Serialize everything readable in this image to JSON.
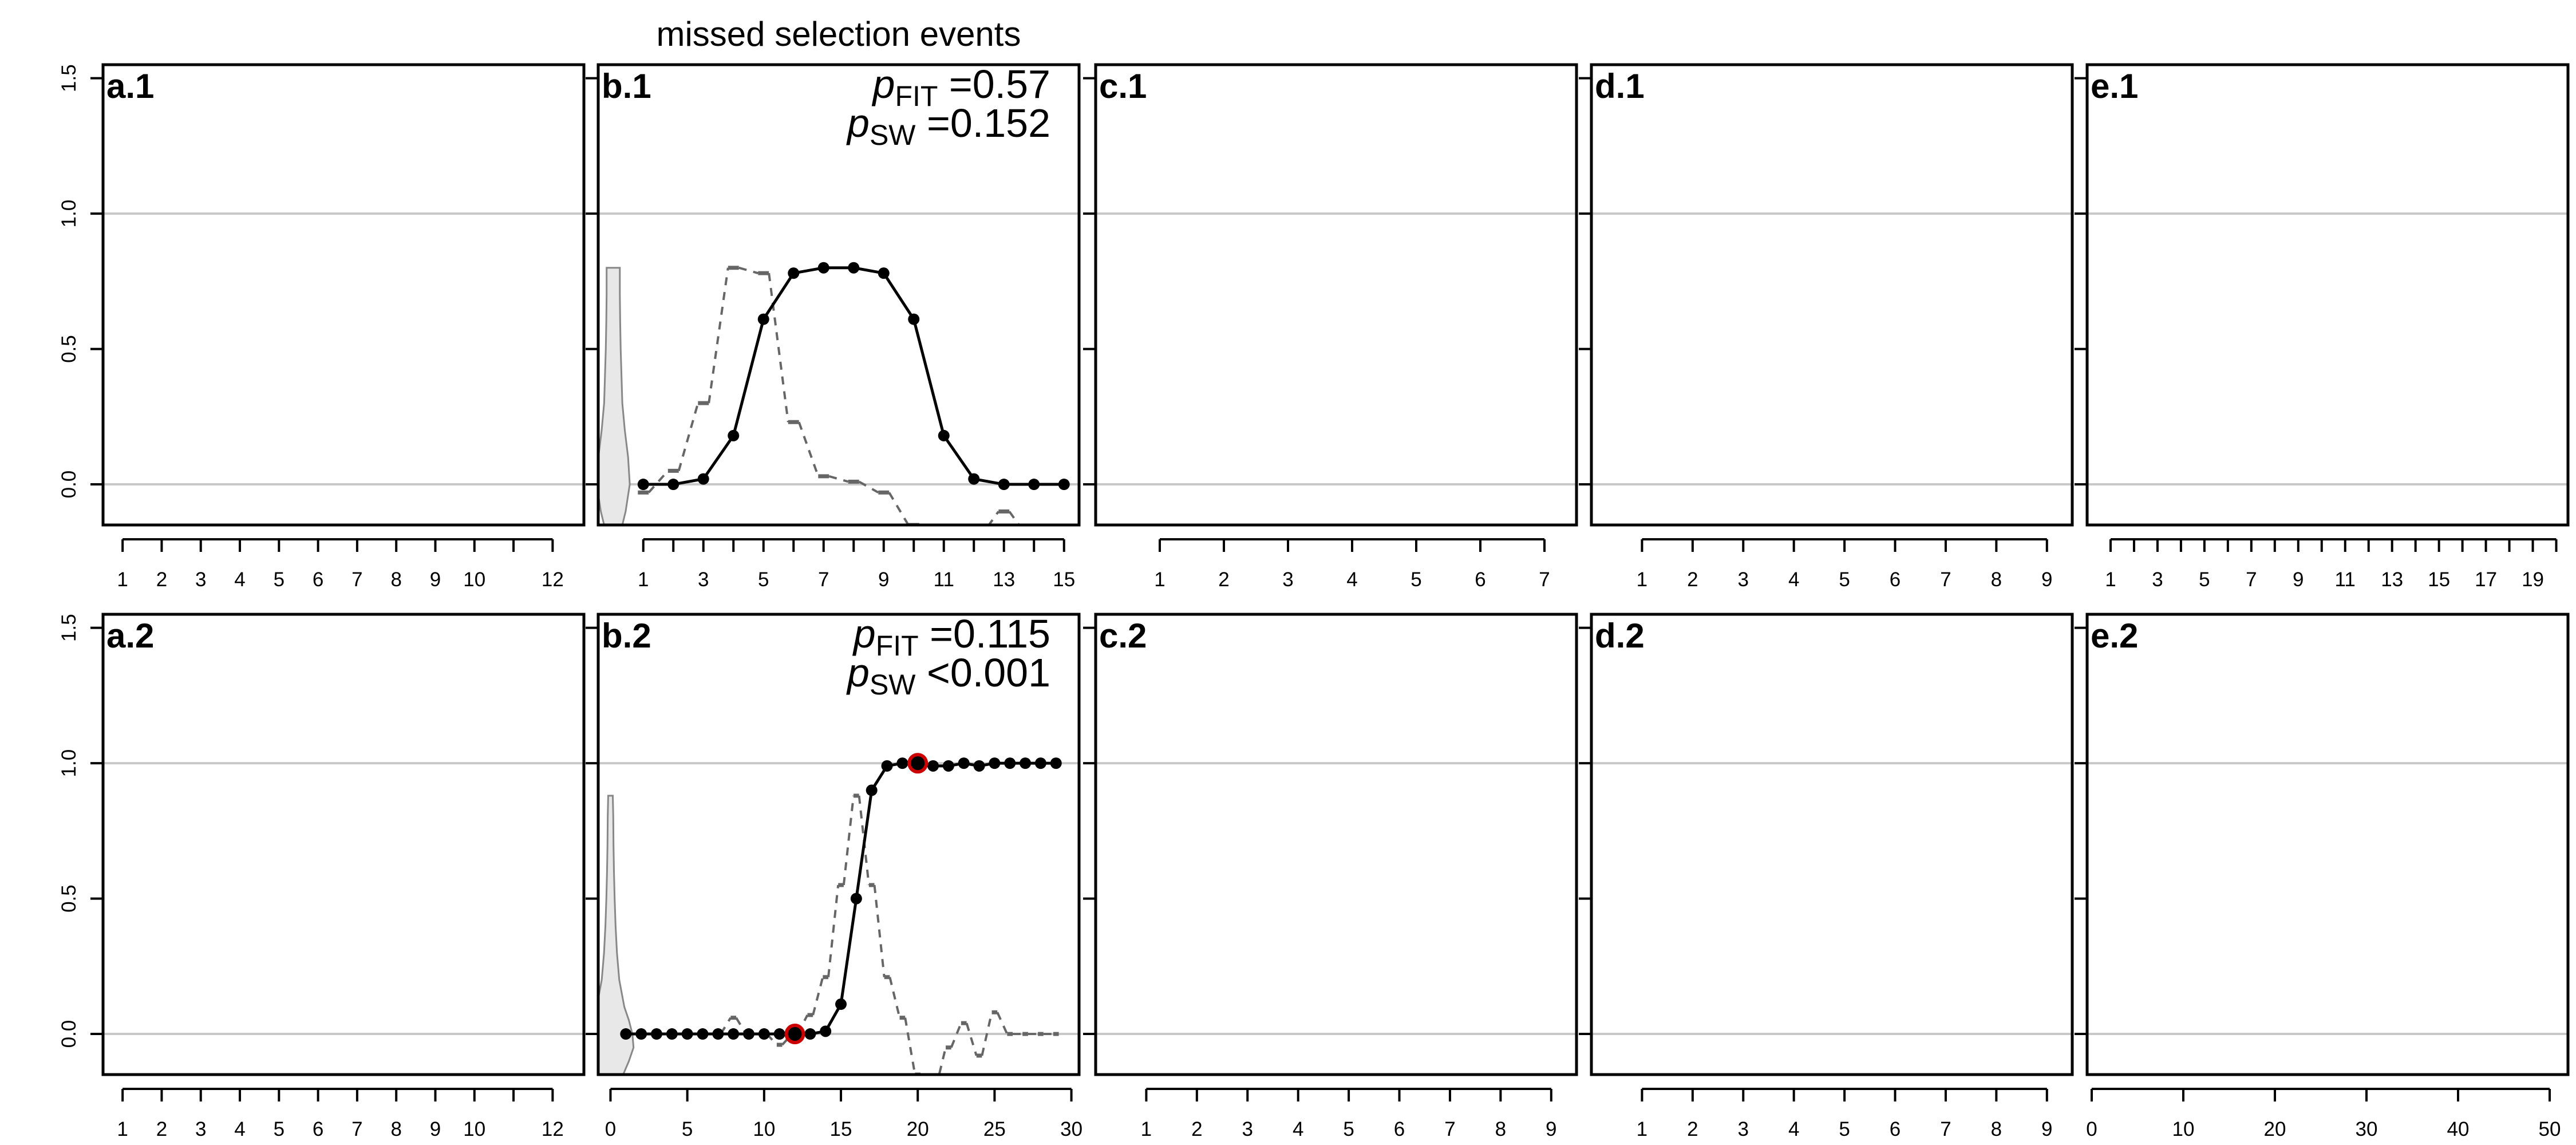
{
  "title": "missed selection events",
  "colors": {
    "frame": "#000000",
    "reference_line": "#c8c8c8",
    "observed": "#000000",
    "dashed": "#666666",
    "violin_fill": "#e8e8e8",
    "violin_stroke": "#888888",
    "highlight": "#cc0000"
  },
  "chart_data": [
    {
      "type": "line",
      "panel": "a.1",
      "row": 1,
      "col": 1,
      "xlim": [
        0.5,
        12.8
      ],
      "ylim": [
        -0.15,
        1.55
      ],
      "yticks": [
        0.0,
        0.5,
        1.0,
        1.5
      ],
      "ytick_labels": [
        "0.0",
        "0.5",
        "1.0",
        "1.5"
      ],
      "reference_lines": [
        0,
        1
      ],
      "xticks": [
        1,
        2,
        3,
        4,
        5,
        6,
        7,
        8,
        9,
        10,
        11,
        12
      ],
      "xtick_labels": [
        "1",
        "2",
        "3",
        "4",
        "5",
        "6",
        "7",
        "8",
        "9",
        "10",
        "",
        "12"
      ],
      "series": []
    },
    {
      "type": "line",
      "panel": "b.1",
      "row": 1,
      "col": 2,
      "xlim": [
        -0.5,
        15.5
      ],
      "ylim": [
        -0.15,
        1.55
      ],
      "yticks": [
        0.0,
        0.5,
        1.0,
        1.5
      ],
      "ytick_labels": [
        "0.0",
        "0.5",
        "1.0",
        "1.5"
      ],
      "reference_lines": [
        0,
        1
      ],
      "xticks": [
        1,
        2,
        3,
        4,
        5,
        6,
        7,
        8,
        9,
        10,
        11,
        12,
        13,
        14,
        15
      ],
      "xtick_labels": [
        "1",
        "",
        "3",
        "",
        "5",
        "",
        "7",
        "",
        "9",
        "",
        "11",
        "",
        "13",
        "",
        "15"
      ],
      "stats": [
        {
          "sym": "p",
          "sub": "FIT",
          "op": "=",
          "value": "0.57"
        },
        {
          "sym": "p",
          "sub": "SW",
          "op": "=",
          "value": "0.152"
        }
      ],
      "observed": {
        "x": [
          1,
          2,
          3,
          4,
          5,
          6,
          7,
          8,
          9,
          10,
          11,
          12,
          13,
          14,
          15
        ],
        "y": [
          0.0,
          0.0,
          0.02,
          0.18,
          0.61,
          0.78,
          0.8,
          0.8,
          0.78,
          0.61,
          0.18,
          0.02,
          0.0,
          0.0,
          0.0
        ]
      },
      "highlight_points": [],
      "dashed": {
        "x": [
          1,
          2,
          3,
          4,
          5,
          6,
          7,
          8,
          9,
          10,
          11,
          12,
          13,
          14,
          15
        ],
        "y": [
          -0.03,
          0.05,
          0.3,
          0.8,
          0.78,
          0.23,
          0.03,
          0.01,
          -0.03,
          -0.15,
          -0.2,
          -0.2,
          -0.1,
          -0.2,
          -0.2
        ]
      },
      "violin": {
        "x_center": 0.0,
        "max_halfwidth": 0.55,
        "y": [
          -0.15,
          -0.1,
          0.0,
          0.1,
          0.2,
          0.3,
          0.4,
          0.5,
          0.6,
          0.7,
          0.8
        ],
        "density": [
          0.55,
          0.75,
          1.0,
          0.9,
          0.7,
          0.55,
          0.5,
          0.45,
          0.42,
          0.4,
          0.4
        ]
      }
    },
    {
      "type": "line",
      "panel": "c.1",
      "row": 1,
      "col": 3,
      "xlim": [
        0.0,
        7.5
      ],
      "ylim": [
        -0.15,
        1.55
      ],
      "yticks": [
        0.0,
        0.5,
        1.0,
        1.5
      ],
      "ytick_labels": [
        "0.0",
        "0.5",
        "1.0",
        "1.5"
      ],
      "reference_lines": [
        0,
        1
      ],
      "xticks": [
        1,
        2,
        3,
        4,
        5,
        6,
        7
      ],
      "xtick_labels": [
        "1",
        "2",
        "3",
        "4",
        "5",
        "6",
        "7"
      ],
      "series": []
    },
    {
      "type": "line",
      "panel": "d.1",
      "row": 1,
      "col": 4,
      "xlim": [
        0.0,
        9.5
      ],
      "ylim": [
        -0.15,
        1.55
      ],
      "yticks": [
        0.0,
        0.5,
        1.0,
        1.5
      ],
      "ytick_labels": [
        "0.0",
        "0.5",
        "1.0",
        "1.5"
      ],
      "reference_lines": [
        0,
        1
      ],
      "xticks": [
        1,
        2,
        3,
        4,
        5,
        6,
        7,
        8,
        9
      ],
      "xtick_labels": [
        "1",
        "2",
        "3",
        "4",
        "5",
        "6",
        "7",
        "8",
        "9"
      ],
      "series": []
    },
    {
      "type": "line",
      "panel": "e.1",
      "row": 1,
      "col": 5,
      "xlim": [
        0.0,
        20.5
      ],
      "ylim": [
        -0.15,
        1.55
      ],
      "yticks": [
        0.0,
        0.5,
        1.0,
        1.5
      ],
      "ytick_labels": [
        "0.0",
        "0.5",
        "1.0",
        "1.5"
      ],
      "reference_lines": [
        0,
        1
      ],
      "xticks": [
        1,
        2,
        3,
        4,
        5,
        6,
        7,
        8,
        9,
        10,
        11,
        12,
        13,
        14,
        15,
        16,
        17,
        18,
        19,
        20
      ],
      "xtick_labels": [
        "1",
        "",
        "3",
        "",
        "5",
        "",
        "7",
        "",
        "9",
        "",
        "11",
        "",
        "13",
        "",
        "15",
        "",
        "17",
        "",
        "19",
        ""
      ],
      "series": []
    },
    {
      "type": "line",
      "panel": "a.2",
      "row": 2,
      "col": 1,
      "xlim": [
        0.5,
        12.8
      ],
      "ylim": [
        -0.15,
        1.55
      ],
      "yticks": [
        0.0,
        0.5,
        1.0,
        1.5
      ],
      "ytick_labels": [
        "0.0",
        "0.5",
        "1.0",
        "1.5"
      ],
      "reference_lines": [
        0,
        1
      ],
      "xticks": [
        1,
        2,
        3,
        4,
        5,
        6,
        7,
        8,
        9,
        10,
        11,
        12
      ],
      "xtick_labels": [
        "1",
        "2",
        "3",
        "4",
        "5",
        "6",
        "7",
        "8",
        "9",
        "10",
        "",
        "12"
      ],
      "series": []
    },
    {
      "type": "line",
      "panel": "b.2",
      "row": 2,
      "col": 2,
      "xlim": [
        -0.8,
        30.5
      ],
      "ylim": [
        -0.15,
        1.55
      ],
      "yticks": [
        0.0,
        0.5,
        1.0,
        1.5
      ],
      "ytick_labels": [
        "0.0",
        "0.5",
        "1.0",
        "1.5"
      ],
      "reference_lines": [
        0,
        1
      ],
      "xticks": [
        0,
        5,
        10,
        15,
        20,
        25,
        30
      ],
      "xtick_labels": [
        "0",
        "5",
        "10",
        "15",
        "20",
        "25",
        "30"
      ],
      "stats": [
        {
          "sym": "p",
          "sub": "FIT",
          "op": "=",
          "value": "0.115"
        },
        {
          "sym": "p",
          "sub": "SW",
          "op": "<",
          "value": "0.001"
        }
      ],
      "observed": {
        "x": [
          1,
          2,
          3,
          4,
          5,
          6,
          7,
          8,
          9,
          10,
          11,
          12,
          13,
          14,
          15,
          16,
          17,
          18,
          19,
          20,
          21,
          22,
          23,
          24,
          25,
          26,
          27,
          28,
          29
        ],
        "y": [
          0,
          0,
          0,
          0,
          0,
          0,
          0,
          0,
          0,
          0,
          0,
          0,
          0,
          0.01,
          0.11,
          0.5,
          0.9,
          0.99,
          1.0,
          1.0,
          0.99,
          0.99,
          1.0,
          0.99,
          1.0,
          1.0,
          1.0,
          1.0,
          1.0
        ]
      },
      "highlight_points": [
        {
          "x": 12,
          "y": 0.0
        },
        {
          "x": 20,
          "y": 1.0
        }
      ],
      "dashed": {
        "x": [
          1,
          2,
          3,
          4,
          5,
          6,
          7,
          8,
          9,
          10,
          11,
          12,
          13,
          14,
          15,
          16,
          17,
          18,
          19,
          20,
          21,
          22,
          23,
          24,
          25,
          26,
          27,
          28,
          29
        ],
        "y": [
          0,
          0,
          0,
          0,
          0,
          0,
          0,
          0.06,
          0,
          0,
          -0.04,
          0,
          0.07,
          0.21,
          0.55,
          0.88,
          0.55,
          0.21,
          0.06,
          -0.15,
          -0.2,
          -0.05,
          0.04,
          -0.08,
          0.08,
          0,
          0,
          0,
          0
        ]
      },
      "violin": {
        "x_center": 0.0,
        "max_halfwidth": 1.5,
        "y": [
          -0.15,
          -0.1,
          -0.05,
          0.0,
          0.05,
          0.1,
          0.2,
          0.3,
          0.4,
          0.5,
          0.6,
          0.7,
          0.8,
          0.88
        ],
        "density": [
          0.55,
          0.8,
          1.0,
          0.95,
          0.8,
          0.6,
          0.38,
          0.28,
          0.22,
          0.18,
          0.15,
          0.13,
          0.12,
          0.1
        ]
      }
    },
    {
      "type": "line",
      "panel": "c.2",
      "row": 2,
      "col": 3,
      "xlim": [
        0.0,
        9.5
      ],
      "ylim": [
        -0.15,
        1.55
      ],
      "yticks": [
        0.0,
        0.5,
        1.0,
        1.5
      ],
      "ytick_labels": [
        "0.0",
        "0.5",
        "1.0",
        "1.5"
      ],
      "reference_lines": [
        0,
        1
      ],
      "xticks": [
        1,
        2,
        3,
        4,
        5,
        6,
        7,
        8,
        9
      ],
      "xtick_labels": [
        "1",
        "2",
        "3",
        "4",
        "5",
        "6",
        "7",
        "8",
        "9"
      ],
      "series": []
    },
    {
      "type": "line",
      "panel": "d.2",
      "row": 2,
      "col": 4,
      "xlim": [
        0.0,
        9.5
      ],
      "ylim": [
        -0.15,
        1.55
      ],
      "yticks": [
        0.0,
        0.5,
        1.0,
        1.5
      ],
      "ytick_labels": [
        "0.0",
        "0.5",
        "1.0",
        "1.5"
      ],
      "reference_lines": [
        0,
        1
      ],
      "xticks": [
        1,
        2,
        3,
        4,
        5,
        6,
        7,
        8,
        9
      ],
      "xtick_labels": [
        "1",
        "2",
        "3",
        "4",
        "5",
        "6",
        "7",
        "8",
        "9"
      ],
      "series": []
    },
    {
      "type": "line",
      "panel": "e.2",
      "row": 2,
      "col": 5,
      "xlim": [
        -0.5,
        52.0
      ],
      "ylim": [
        -0.15,
        1.55
      ],
      "yticks": [
        0.0,
        0.5,
        1.0,
        1.5
      ],
      "ytick_labels": [
        "0.0",
        "0.5",
        "1.0",
        "1.5"
      ],
      "reference_lines": [
        0,
        1
      ],
      "xticks": [
        0,
        10,
        20,
        30,
        40,
        50
      ],
      "xtick_labels": [
        "0",
        "10",
        "20",
        "30",
        "40",
        "50"
      ],
      "series": []
    }
  ]
}
